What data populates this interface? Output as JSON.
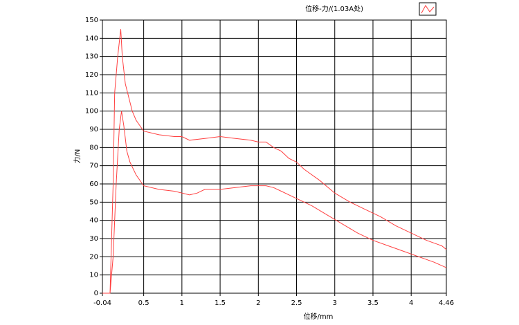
{
  "chart_data": {
    "type": "line",
    "x_label": "位移/mm",
    "y_label": "力/N",
    "x": [
      -0.04,
      0.06,
      0.1,
      0.12,
      0.16,
      0.2,
      0.22,
      0.26,
      0.35,
      0.4,
      0.5,
      0.7,
      0.9,
      1.0,
      1.1,
      1.3,
      1.5,
      1.7,
      1.9,
      2.0,
      2.1,
      2.2,
      2.3,
      2.4,
      2.5,
      2.6,
      2.8,
      3.0,
      3.2,
      3.4,
      3.6,
      3.8,
      4.0,
      4.2,
      4.4,
      4.46,
      null,
      -0.04,
      0.06,
      0.1,
      0.14,
      0.18,
      0.21,
      0.24,
      0.28,
      0.32,
      0.4,
      0.5,
      0.7,
      0.9,
      1.1,
      1.2,
      1.3,
      1.5,
      1.7,
      1.9,
      2.0,
      2.1,
      2.2,
      2.3,
      2.4,
      2.5,
      2.7,
      2.9,
      3.1,
      3.3,
      3.5,
      3.7,
      3.9,
      4.1,
      4.3,
      4.46
    ],
    "series": [
      {
        "name": "位移-力/(1.03A处)",
        "color": "#ff4040",
        "values": [
          0,
          0,
          60,
          110,
          130,
          145,
          130,
          115,
          100,
          95,
          89,
          87,
          86,
          86,
          84,
          85,
          86,
          85,
          84,
          83,
          83,
          80,
          78,
          74,
          72,
          68,
          62,
          55,
          50,
          46,
          42,
          37,
          33,
          29,
          26,
          24,
          null,
          0,
          0,
          20,
          60,
          90,
          100,
          92,
          78,
          72,
          65,
          59,
          57,
          56,
          54,
          55,
          57,
          57,
          58,
          59,
          59,
          59,
          58,
          56,
          54,
          52,
          48,
          43,
          38,
          33,
          29,
          26,
          23,
          20,
          17,
          14
        ]
      }
    ],
    "xlim": [
      -0.04,
      4.46
    ],
    "xticks": [
      -0.04,
      0.5,
      1,
      1.5,
      2,
      2.5,
      3,
      3.5,
      4,
      4.46
    ],
    "ylim": [
      0,
      150
    ],
    "yticks": [
      0,
      10,
      20,
      30,
      40,
      50,
      60,
      70,
      80,
      90,
      100,
      110,
      120,
      130,
      140,
      150
    ],
    "grid": true
  }
}
